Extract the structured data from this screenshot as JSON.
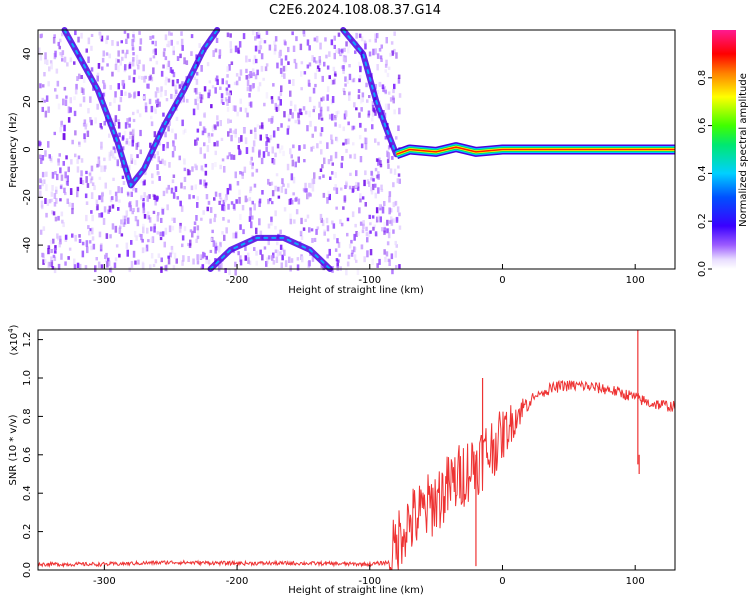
{
  "title": "C2E6.2024.108.08.37.G14",
  "colors": {
    "background": "#ffffff",
    "axis": "#000000",
    "snr_line": "#ee3333",
    "speckle_dense": "#6a00e8",
    "speckle_light": "#d6b8ff"
  },
  "chart_data": [
    {
      "type": "heatmap",
      "name": "spectrogram",
      "xlabel": "Height of straight line (km)",
      "ylabel": "Frequency (Hz)",
      "xlim": [
        -350,
        130
      ],
      "ylim": [
        -50,
        50
      ],
      "x_ticks": [
        -300,
        -200,
        -100,
        0,
        100
      ],
      "x_tick_labels": [
        "-300",
        "-200",
        "-100",
        "0",
        "100"
      ],
      "y_ticks": [
        -40,
        -20,
        0,
        20,
        40
      ],
      "y_tick_labels": [
        "-40",
        "-20",
        "0",
        "20",
        "40"
      ],
      "colorbar": {
        "label": "Normalized spectral amplitude",
        "range": [
          0.0,
          1.0
        ],
        "ticks": [
          0.0,
          0.2,
          0.4,
          0.6,
          0.8
        ],
        "tick_labels": [
          "0.0",
          "0.2",
          "0.4",
          "0.6",
          "0.8"
        ],
        "colormap": "rainbow (white-violet-blue-cyan-green-yellow-red-magenta)"
      },
      "speckle_region_x": [
        -350,
        -78
      ],
      "ridges": [
        {
          "feature": "V-shaped trace",
          "points": [
            [
              -330,
              50
            ],
            [
              -305,
              25
            ],
            [
              -290,
              3
            ],
            [
              -280,
              -15
            ],
            [
              -270,
              -8
            ],
            [
              -255,
              10
            ],
            [
              -240,
              25
            ],
            [
              -225,
              42
            ],
            [
              -215,
              50
            ]
          ]
        },
        {
          "feature": "upper descending arc",
          "points": [
            [
              -120,
              50
            ],
            [
              -105,
              40
            ],
            [
              -95,
              20
            ],
            [
              -85,
              5
            ],
            [
              -80,
              -2
            ]
          ]
        },
        {
          "feature": "lower arc",
          "points": [
            [
              -220,
              -50
            ],
            [
              -205,
              -42
            ],
            [
              -185,
              -37
            ],
            [
              -165,
              -37
            ],
            [
              -145,
              -42
            ],
            [
              -130,
              -50
            ]
          ]
        },
        {
          "feature": "carrier band",
          "points": [
            [
              -80,
              -2
            ],
            [
              -70,
              0
            ],
            [
              -50,
              -1
            ],
            [
              -35,
              1
            ],
            [
              -20,
              -1
            ],
            [
              0,
              0
            ],
            [
              130,
              0
            ]
          ]
        }
      ]
    },
    {
      "type": "line",
      "name": "snr",
      "xlabel": "Height of straight line (km)",
      "ylabel": "SNR (10 * v/v)",
      "y_multiplier_label": "(x10",
      "y_multiplier_exp": "4",
      "y_multiplier_close": ")",
      "xlim": [
        -350,
        130
      ],
      "ylim": [
        0,
        1.25
      ],
      "x_ticks": [
        -300,
        -200,
        -100,
        0,
        100
      ],
      "x_tick_labels": [
        "-300",
        "-200",
        "-100",
        "0",
        "100"
      ],
      "y_ticks": [
        0.0,
        0.2,
        0.4,
        0.6,
        0.8,
        1.0,
        1.2
      ],
      "y_tick_labels": [
        "0.0",
        "0.2",
        "0.4",
        "0.6",
        "0.8",
        "1.0",
        "1.2"
      ],
      "x": [
        -350,
        -300,
        -250,
        -200,
        -150,
        -100,
        -85,
        -75,
        -60,
        -45,
        -30,
        -20,
        -10,
        0,
        10,
        20,
        30,
        45,
        60,
        80,
        90,
        100,
        110,
        120,
        130
      ],
      "y": [
        0.03,
        0.03,
        0.04,
        0.035,
        0.035,
        0.03,
        0.04,
        0.22,
        0.3,
        0.4,
        0.5,
        0.56,
        0.62,
        0.7,
        0.8,
        0.88,
        0.93,
        0.96,
        0.96,
        0.94,
        0.92,
        0.9,
        0.87,
        0.86,
        0.85
      ],
      "spikes": [
        {
          "x": -15,
          "y": 1.0
        },
        {
          "x": -20,
          "y": 0.02
        },
        {
          "x": 102,
          "y": 1.25
        },
        {
          "x": 103,
          "y": 0.5
        }
      ]
    }
  ]
}
